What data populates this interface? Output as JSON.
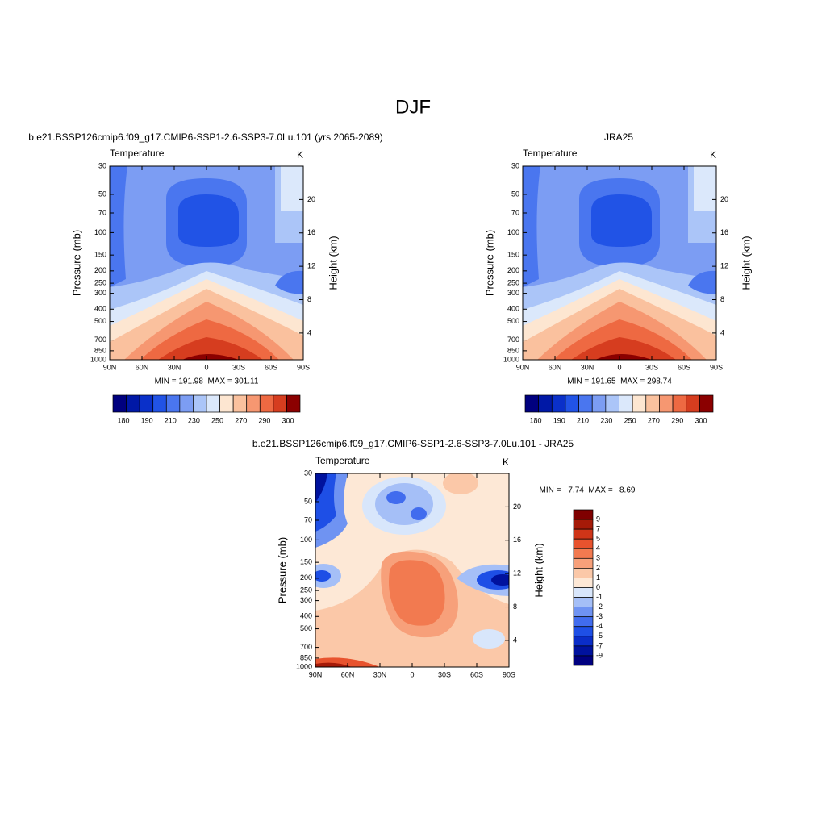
{
  "title": "DJF",
  "chart_data": [
    {
      "type": "contour",
      "title": "b.e21.BSSP126cmip6.f09_g17.CMIP6-SSP1-2.6-SSP3-7.0Lu.101 (yrs 2065-2089)",
      "left_label": "Temperature",
      "right_label": "K",
      "ylabel": "Pressure (mb)",
      "y2label": "Height (km)",
      "xlim": [
        90,
        -90
      ],
      "xticks": [
        {
          "value": 90,
          "label": "90N"
        },
        {
          "value": 60,
          "label": "60N"
        },
        {
          "value": 30,
          "label": "30N"
        },
        0,
        {
          "value": -30,
          "label": "30S"
        },
        {
          "value": -60,
          "label": "60S"
        },
        {
          "value": -90,
          "label": "90S"
        }
      ],
      "ylim": [
        1000,
        30
      ],
      "y_scale": "log",
      "yticks": [
        30,
        50,
        70,
        100,
        150,
        200,
        250,
        300,
        400,
        500,
        700,
        850,
        1000
      ],
      "y2lim": [
        0.8,
        24
      ],
      "y2ticks": [
        4,
        8,
        12,
        16,
        20
      ],
      "stats": "MIN = 191.98  MAX = 301.11",
      "colorbar": {
        "orientation": "horizontal",
        "colors": [
          "#00007f",
          "#0018a6",
          "#0a30c9",
          "#2153e6",
          "#4a76ef",
          "#7c9df3",
          "#abc5f8",
          "#dbe8fb",
          "#fde6d1",
          "#fac19e",
          "#f69771",
          "#ee6942",
          "#d63d1f",
          "#8b0000"
        ],
        "ticks": [
          180,
          190,
          210,
          230,
          250,
          270,
          290,
          300
        ]
      }
    },
    {
      "type": "contour",
      "title": "JRA25",
      "left_label": "Temperature",
      "right_label": "K",
      "ylabel": "Pressure (mb)",
      "y2label": "Height (km)",
      "xlim": [
        90,
        -90
      ],
      "xticks": [
        {
          "value": 90,
          "label": "90N"
        },
        {
          "value": 60,
          "label": "60N"
        },
        {
          "value": 30,
          "label": "30N"
        },
        0,
        {
          "value": -30,
          "label": "30S"
        },
        {
          "value": -60,
          "label": "60S"
        },
        {
          "value": -90,
          "label": "90S"
        }
      ],
      "ylim": [
        1000,
        30
      ],
      "y_scale": "log",
      "yticks": [
        30,
        50,
        70,
        100,
        150,
        200,
        250,
        300,
        400,
        500,
        700,
        850,
        1000
      ],
      "y2lim": [
        0.8,
        24
      ],
      "y2ticks": [
        4,
        8,
        12,
        16,
        20
      ],
      "stats": "MIN = 191.65  MAX = 298.74",
      "colorbar": {
        "orientation": "horizontal",
        "colors": [
          "#00007f",
          "#0018a6",
          "#0a30c9",
          "#2153e6",
          "#4a76ef",
          "#7c9df3",
          "#abc5f8",
          "#dbe8fb",
          "#fde6d1",
          "#fac19e",
          "#f69771",
          "#ee6942",
          "#d63d1f",
          "#8b0000"
        ],
        "ticks": [
          180,
          190,
          210,
          230,
          250,
          270,
          290,
          300
        ]
      }
    },
    {
      "type": "contour",
      "title": "b.e21.BSSP126cmip6.f09_g17.CMIP6-SSP1-2.6-SSP3-7.0Lu.101 - JRA25",
      "left_label": "Temperature",
      "right_label": "K",
      "ylabel": "Pressure (mb)",
      "y2label": "Height (km)",
      "xlim": [
        90,
        -90
      ],
      "xticks": [
        {
          "value": 90,
          "label": "90N"
        },
        {
          "value": 60,
          "label": "60N"
        },
        {
          "value": 30,
          "label": "30N"
        },
        0,
        {
          "value": -30,
          "label": "30S"
        },
        {
          "value": -60,
          "label": "60S"
        },
        {
          "value": -90,
          "label": "90S"
        }
      ],
      "ylim": [
        1000,
        30
      ],
      "y_scale": "log",
      "yticks": [
        30,
        50,
        70,
        100,
        150,
        200,
        250,
        300,
        400,
        500,
        700,
        850,
        1000
      ],
      "y2lim": [
        0.8,
        24
      ],
      "y2ticks": [
        4,
        8,
        12,
        16,
        20
      ],
      "stats": "MIN =  -7.74  MAX =   8.69",
      "colorbar": {
        "orientation": "vertical",
        "colors": [
          "#7f0000",
          "#a51a08",
          "#cf3518",
          "#e8532e",
          "#f27a50",
          "#f7a07a",
          "#fbc8a8",
          "#fde8d6",
          "#d8e6fb",
          "#a5bff7",
          "#6f93f2",
          "#416cee",
          "#1e4fe6",
          "#0a2dc8",
          "#00129e",
          "#000080"
        ],
        "ticks": [
          9,
          7,
          5,
          4,
          3,
          2,
          1,
          0,
          -1,
          -2,
          -3,
          -4,
          -5,
          -7,
          -9
        ]
      }
    }
  ]
}
